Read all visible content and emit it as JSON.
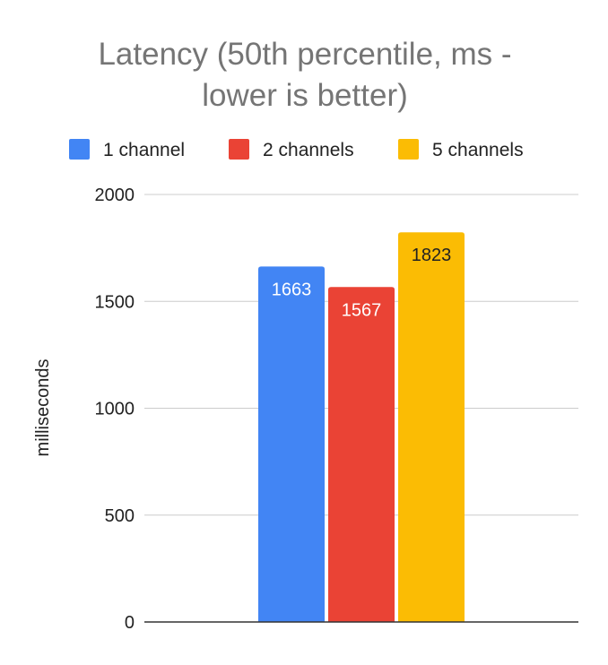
{
  "chart_data": {
    "type": "bar",
    "title_lines": [
      "Latency (50th percentile, ms -",
      "lower is better)"
    ],
    "ylabel": "milliseconds",
    "xlabel": "",
    "ylim": [
      0,
      2000
    ],
    "yticks": [
      "0",
      "500",
      "1000",
      "1500",
      "2000"
    ],
    "ytick_values": [
      0,
      500,
      1000,
      1500,
      2000
    ],
    "grid": true,
    "legend_position": "top",
    "series": [
      {
        "name": "1 channel",
        "value": 1663,
        "label": "1663",
        "color": "#4285f4",
        "label_color": "#ffffff"
      },
      {
        "name": "2 channels",
        "value": 1567,
        "label": "1567",
        "color": "#ea4335",
        "label_color": "#ffffff"
      },
      {
        "name": "5 channels",
        "value": 1823,
        "label": "1823",
        "color": "#fbbc04",
        "label_color": "#222222"
      }
    ]
  }
}
